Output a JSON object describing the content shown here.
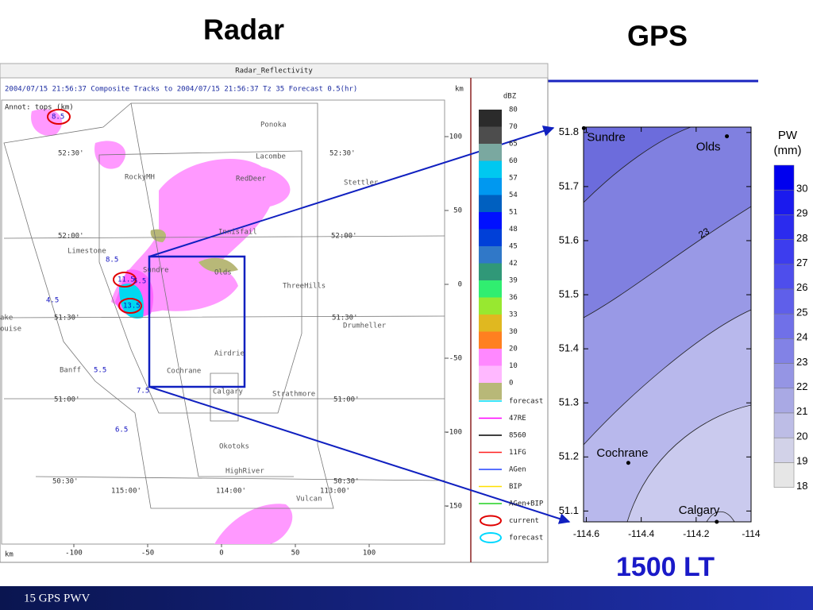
{
  "slide": {
    "title_left": "Radar",
    "title_right": "GPS",
    "caption": "1500 LT",
    "footer": "15 GPS PWV"
  },
  "radar": {
    "window_title": "Radar_Reflectivity",
    "header": "2004/07/15 21:56:37  Composite Tracks to 2004/07/15 21:56:37 Tz 35 Forecast 0.5(hr)",
    "unit": "km",
    "annotation": "Annot: tops (km)",
    "places": [
      "Ponoka",
      "Lacombe",
      "RedDeer",
      "RockyMH",
      "Stettler",
      "Innisfail",
      "Limestone",
      "Sundre",
      "Olds",
      "ThreeHills",
      "Drumheller",
      "ake",
      "ouise",
      "Airdrie",
      "Banff",
      "Cochrane",
      "Calgary",
      "Strathmore",
      "Okotoks",
      "HighRiver",
      "Vulcan"
    ],
    "grid_labels": [
      "52:30'",
      "52:30'",
      "52:00'",
      "52:00'",
      "51:30'",
      "51:30'",
      "51:00'",
      "51:00'",
      "50:30'",
      "50:30'",
      "115:00'",
      "114:00'",
      "113:00'"
    ],
    "track_tops": [
      "8.5",
      "8.5",
      "11.5",
      "5.5",
      "13.5",
      "4.5",
      "5.5",
      "7.5",
      "6.5"
    ],
    "x_ticks": [
      -100,
      -50,
      0,
      50,
      100
    ],
    "y_ticks": [
      100,
      50,
      0,
      -50,
      -100,
      -150
    ],
    "legend_title": "dBZ",
    "dbz": [
      80,
      70,
      65,
      60,
      57,
      54,
      51,
      48,
      45,
      42,
      39,
      36,
      33,
      30,
      20,
      10,
      0
    ],
    "dbz_colors": [
      "#2b2b2b",
      "#4d4d4d",
      "#7aa8a0",
      "#00c8f0",
      "#0098f0",
      "#0060c0",
      "#0010ff",
      "#0040d8",
      "#3078c8",
      "#309878",
      "#30ee70",
      "#98e830",
      "#e0b820",
      "#ff8020",
      "#ff88ff",
      "#ffb8ff",
      "#b8b878"
    ],
    "track_legend": [
      {
        "label": "forecast",
        "color": "#00e0ff"
      },
      {
        "label": "47RE",
        "color": "#ff00ff"
      },
      {
        "label": "8560",
        "color": "#000000"
      },
      {
        "label": "11FG",
        "color": "#ff2020"
      },
      {
        "label": "AGen",
        "color": "#2040ff"
      },
      {
        "label": "BIP",
        "color": "#ffe000"
      },
      {
        "label": "AGen+BIP",
        "color": "#20d020"
      },
      {
        "label": "current",
        "color": "#e00000"
      },
      {
        "label": "forecast",
        "color": "#00d8ff"
      }
    ]
  },
  "gps": {
    "xlim": [
      -114.61,
      -114
    ],
    "ylim": [
      51.08,
      51.81
    ],
    "xticks": [
      -114.6,
      -114.4,
      -114.2,
      -114
    ],
    "yticks": [
      51.1,
      51.2,
      51.3,
      51.4,
      51.5,
      51.6,
      51.7,
      51.8
    ],
    "stations": [
      {
        "name": "Sundre",
        "lon": -114.609,
        "lat": 51.808
      },
      {
        "name": "Olds",
        "lon": -114.088,
        "lat": 51.793
      },
      {
        "name": "Cochrane",
        "lon": -114.447,
        "lat": 51.189
      },
      {
        "name": "Calgary",
        "lon": -114.125,
        "lat": 51.08
      }
    ],
    "contour_label": "23",
    "colorbar_title": [
      "PW",
      "(mm)"
    ],
    "levels": [
      30,
      29,
      28,
      27,
      26,
      25,
      24,
      23,
      22,
      21,
      20,
      19,
      18
    ],
    "level_colors": [
      "#0000ee",
      "#1a1aee",
      "#2b2bee",
      "#3d3dee",
      "#4e4eec",
      "#5f5fea",
      "#7070e8",
      "#8282e6",
      "#9595e4",
      "#a9a9e4",
      "#bdbde6",
      "#d2d2e8",
      "#e6e6e6"
    ]
  }
}
